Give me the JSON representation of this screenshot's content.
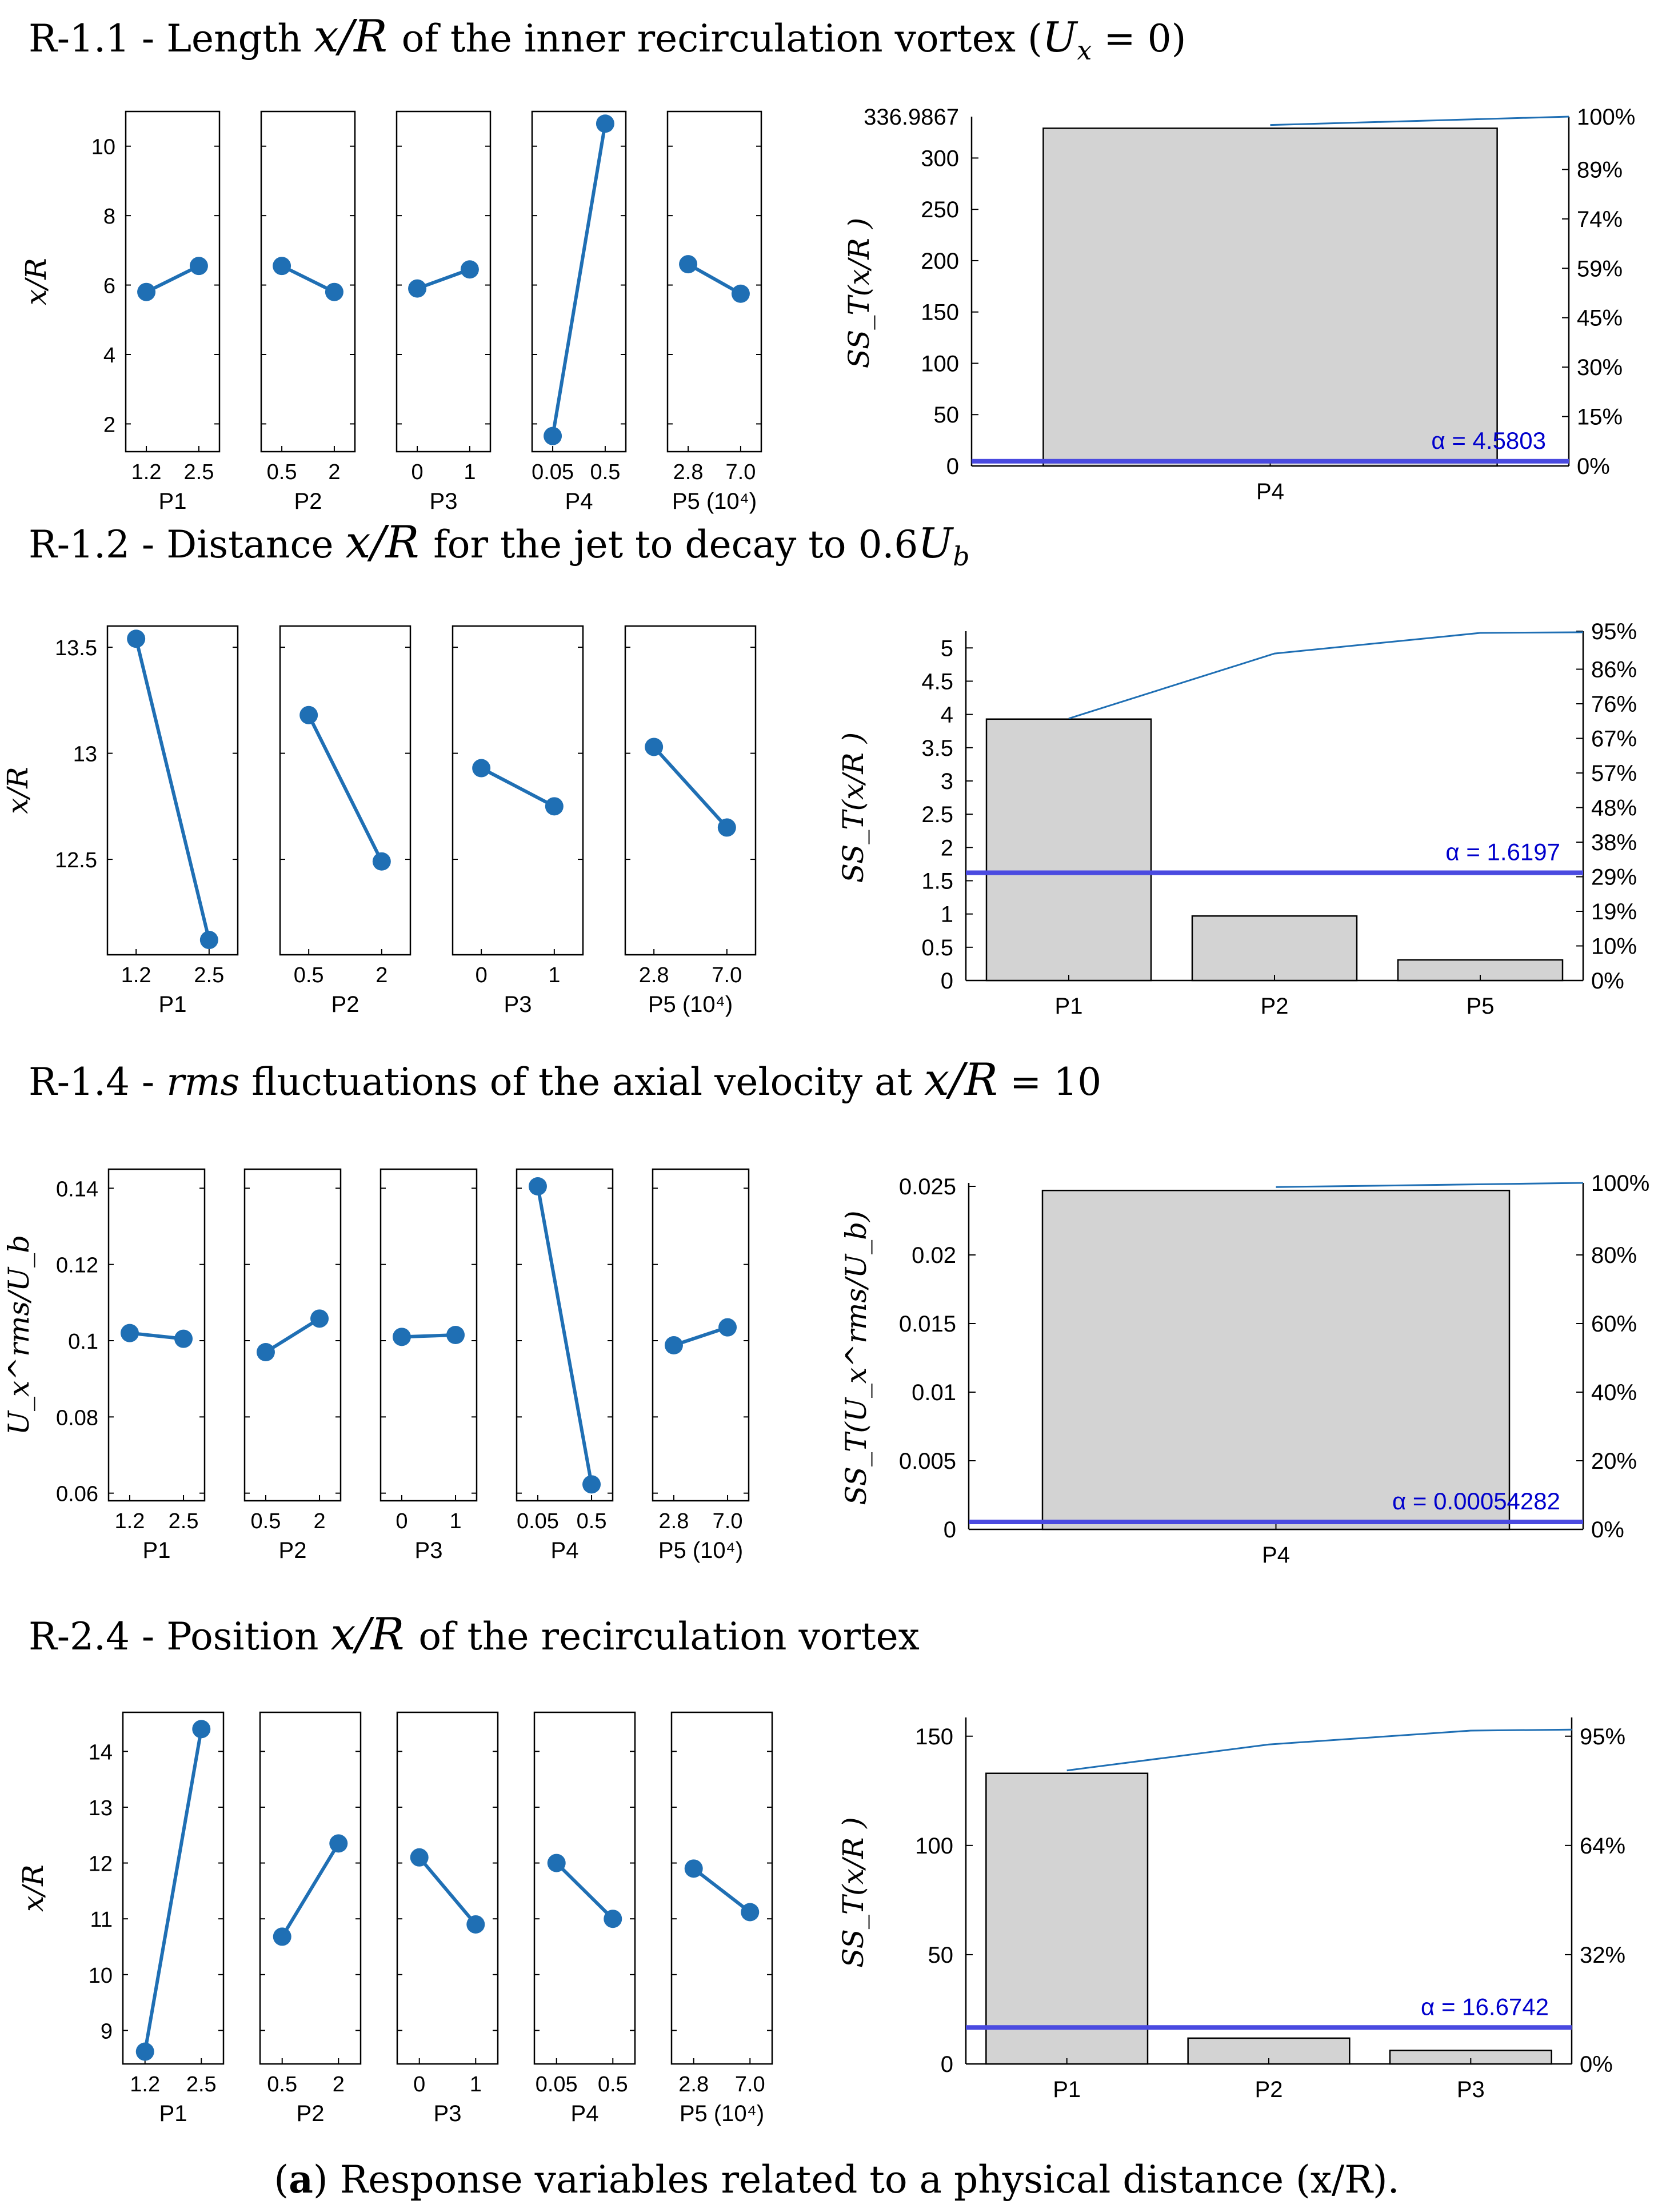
{
  "caption": {
    "prefix": "(",
    "letter": "a",
    "text": ") Response variables related to a physical distance (x/R)."
  },
  "colors": {
    "line": "#1f6fb4",
    "bar_fill": "#d3d3d3",
    "alpha_line": "#4a4ae0",
    "alpha_text": "#0000cc",
    "axis": "#000000"
  },
  "chart_data": [
    {
      "id": "R-1.1",
      "title": "R-1.1 - Length x/R of the inner recirculation vortex (U_x = 0)",
      "title_parts": {
        "code": "R-1.1 - Length ",
        "math": "x/R",
        "rest": " of the inner recirculation vortex (",
        "math2": "U",
        "sub": "x",
        "tail": " = 0)"
      },
      "main_effects": {
        "type": "line",
        "ylabel": "x/R",
        "ylim": [
          1.2,
          11.0
        ],
        "yticks": [
          2,
          4,
          6,
          8,
          10
        ],
        "panels": [
          {
            "factor": "P1",
            "levels": [
              "1.2",
              "2.5"
            ],
            "values": [
              5.8,
              6.55
            ]
          },
          {
            "factor": "P2",
            "levels": [
              "0.5",
              "2"
            ],
            "values": [
              6.55,
              5.8
            ]
          },
          {
            "factor": "P3",
            "levels": [
              "0",
              "1"
            ],
            "values": [
              5.9,
              6.45
            ]
          },
          {
            "factor": "P4",
            "levels": [
              "0.05",
              "0.5"
            ],
            "values": [
              1.65,
              10.65
            ]
          },
          {
            "factor": "P5 (10⁴)",
            "levels": [
              "2.8",
              "7.0"
            ],
            "values": [
              6.6,
              5.75
            ]
          }
        ]
      },
      "pareto": {
        "type": "bar",
        "ylabel": "SS_T(x/R )",
        "ylim": [
          0,
          336.9867
        ],
        "yticks": [
          "0",
          "50",
          "100",
          "150",
          "200",
          "250",
          "300"
        ],
        "ymax_label": "336.9867",
        "right_ticks": [
          "0%",
          "15%",
          "30%",
          "45%",
          "59%",
          "74%",
          "89%",
          "100%"
        ],
        "categories": [
          "P4"
        ],
        "values": [
          329.0
        ],
        "cumulative_percent": [
          97.6,
          100.0
        ],
        "alpha": 4.5803,
        "alpha_label": "α = 4.5803"
      }
    },
    {
      "id": "R-1.2",
      "title": "R-1.2 - Distance x/R for the jet to decay to 0.6U_b",
      "title_parts": {
        "code": "R-1.2 - Distance ",
        "math": "x/R",
        "rest": "  for the jet to decay to 0.6",
        "math2": "U",
        "sub": "b",
        "tail": ""
      },
      "main_effects": {
        "type": "line",
        "ylabel": "x/R",
        "ylim": [
          12.05,
          13.6
        ],
        "yticks": [
          12.5,
          13,
          13.5
        ],
        "panels": [
          {
            "factor": "P1",
            "levels": [
              "1.2",
              "2.5"
            ],
            "values": [
              13.54,
              12.12
            ]
          },
          {
            "factor": "P2",
            "levels": [
              "0.5",
              "2"
            ],
            "values": [
              13.18,
              12.49
            ]
          },
          {
            "factor": "P3",
            "levels": [
              "0",
              "1"
            ],
            "values": [
              12.93,
              12.75
            ]
          },
          {
            "factor": "P5 (10⁴)",
            "levels": [
              "2.8",
              "7.0"
            ],
            "values": [
              13.03,
              12.65
            ]
          }
        ]
      },
      "pareto": {
        "type": "bar",
        "ylabel": "SS_T(x/R )",
        "ylim": [
          0,
          5.2
        ],
        "yticks": [
          "0",
          "0.5",
          "1",
          "1.5",
          "2",
          "2.5",
          "3",
          "3.5",
          "4",
          "4.5",
          "5"
        ],
        "ymax_label": "",
        "right_ticks": [
          "0%",
          "10%",
          "19%",
          "29%",
          "38%",
          "48%",
          "57%",
          "67%",
          "76%",
          "86%",
          "95%"
        ],
        "categories": [
          "P1",
          "P2",
          "P5"
        ],
        "values": [
          3.93,
          0.97,
          0.31
        ],
        "cumulative_percent": [
          75.0,
          93.6,
          99.5
        ],
        "alpha": 1.6197,
        "alpha_label": "α = 1.6197"
      }
    },
    {
      "id": "R-1.4",
      "title": "R-1.4 - rms fluctuations of the axial velocity at x/R = 10",
      "title_parts": {
        "code": "R-1.4 - ",
        "rms": "rms",
        "rest": " fluctuations of the axial velocity at  ",
        "math": "x/R",
        "tail": " = 10"
      },
      "main_effects": {
        "type": "line",
        "ylabel": "U_x^rms/U_b",
        "ylim": [
          0.058,
          0.145
        ],
        "yticks": [
          0.06,
          0.08,
          0.1,
          0.12,
          0.14
        ],
        "panels": [
          {
            "factor": "P1",
            "levels": [
              "1.2",
              "2.5"
            ],
            "values": [
              0.102,
              0.1005
            ]
          },
          {
            "factor": "P2",
            "levels": [
              "0.5",
              "2"
            ],
            "values": [
              0.097,
              0.1058
            ]
          },
          {
            "factor": "P3",
            "levels": [
              "0",
              "1"
            ],
            "values": [
              0.101,
              0.1015
            ]
          },
          {
            "factor": "P4",
            "levels": [
              "0.05",
              "0.5"
            ],
            "values": [
              0.1405,
              0.0623
            ]
          },
          {
            "factor": "P5 (10⁴)",
            "levels": [
              "2.8",
              "7.0"
            ],
            "values": [
              0.0988,
              0.1035
            ]
          }
        ]
      },
      "pareto": {
        "type": "bar",
        "ylabel": "SS_T(U_x^rms/U_b)",
        "ylim": [
          0,
          0.025
        ],
        "yticks": [
          "0",
          "0.005",
          "0.01",
          "0.015",
          "0.02",
          "0.025"
        ],
        "ymax_label": "",
        "right_ticks": [
          "0%",
          "20%",
          "40%",
          "60%",
          "80%",
          "100%"
        ],
        "categories": [
          "P4"
        ],
        "values": [
          0.0247
        ],
        "cumulative_percent": [
          98.8,
          100.0
        ],
        "alpha": 0.00054282,
        "alpha_label": "α = 0.00054282"
      }
    },
    {
      "id": "R-2.4",
      "title": "R-2.4 - Position x/R of the recirculation vortex",
      "title_parts": {
        "code": "R-2.4 - Position ",
        "math": "x/R",
        "rest": " of the recirculation  vortex",
        "tail": ""
      },
      "main_effects": {
        "type": "line",
        "ylabel": "x/R",
        "ylim": [
          8.4,
          14.7
        ],
        "yticks": [
          9,
          10,
          11,
          12,
          13,
          14
        ],
        "panels": [
          {
            "factor": "P1",
            "levels": [
              "1.2",
              "2.5"
            ],
            "values": [
              8.62,
              14.4
            ]
          },
          {
            "factor": "P2",
            "levels": [
              "0.5",
              "2"
            ],
            "values": [
              10.68,
              12.35
            ]
          },
          {
            "factor": "P3",
            "levels": [
              "0",
              "1"
            ],
            "values": [
              12.1,
              10.9
            ]
          },
          {
            "factor": "P4",
            "levels": [
              "0.05",
              "0.5"
            ],
            "values": [
              12.0,
              11.0
            ]
          },
          {
            "factor": "P5 (10⁴)",
            "levels": [
              "2.8",
              "7.0"
            ],
            "values": [
              11.9,
              11.12
            ]
          }
        ]
      },
      "pareto": {
        "type": "bar",
        "ylabel": "SS_T(x/R )",
        "ylim": [
          0,
          157
        ],
        "yticks": [
          "0",
          "50",
          "100",
          "150"
        ],
        "ymax_label": "",
        "right_ticks": [
          "0%",
          "32%",
          "64%",
          "95%"
        ],
        "right_tick_values": [
          0,
          50,
          100,
          150
        ],
        "categories": [
          "P1",
          "P2",
          "P3"
        ],
        "values": [
          133.0,
          11.8,
          6.2
        ],
        "cumulative_percent": [
          84.7,
          92.2,
          96.2
        ],
        "alpha": 16.6742,
        "alpha_label": "α = 16.6742"
      }
    }
  ]
}
